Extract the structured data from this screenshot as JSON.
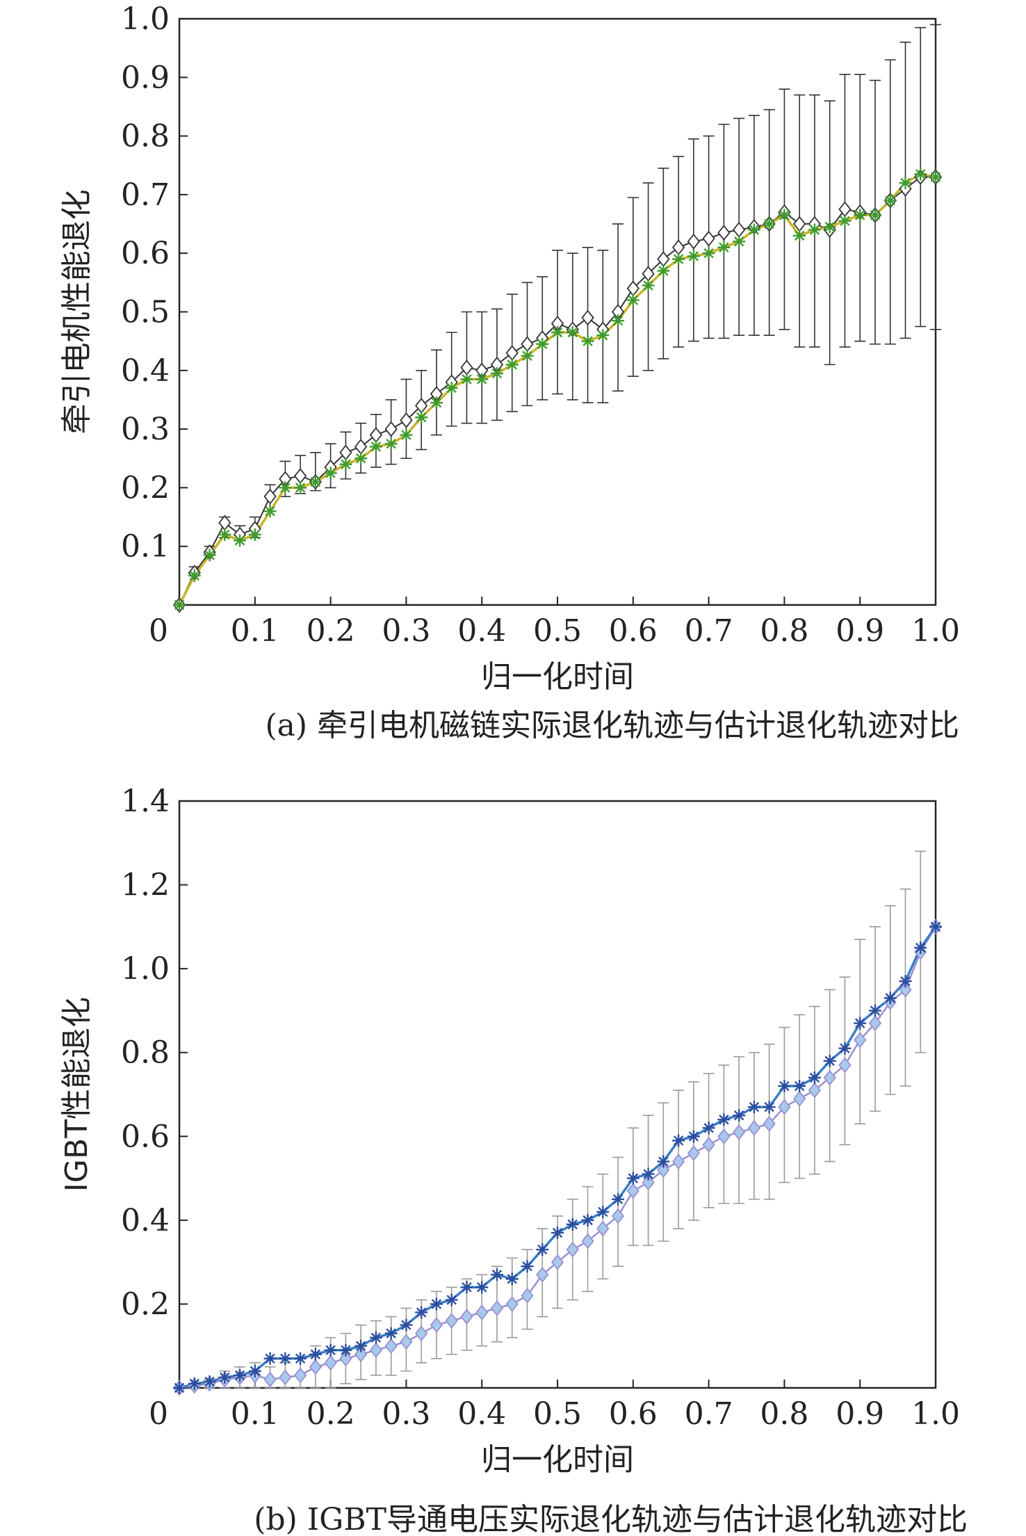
{
  "chart_data": [
    {
      "type": "line",
      "caption": "(a) 牵引电机磁链实际退化轨迹与估计退化轨迹对比",
      "xlabel": "归一化时间",
      "ylabel": "牵引电机性能退化",
      "xlim": [
        0,
        1.0
      ],
      "ylim": [
        0,
        1.0
      ],
      "x_origin_label": "0",
      "xticks": [
        0.1,
        0.2,
        0.3,
        0.4,
        0.5,
        0.6,
        0.7,
        0.8,
        0.9,
        1.0
      ],
      "xtick_labels": [
        "0.1",
        "0.2",
        "0.3",
        "0.4",
        "0.5",
        "0.6",
        "0.7",
        "0.8",
        "0.9",
        "1.0"
      ],
      "yticks": [
        0.1,
        0.2,
        0.3,
        0.4,
        0.5,
        0.6,
        0.7,
        0.8,
        0.9,
        1.0
      ],
      "ytick_labels": [
        "0.1",
        "0.2",
        "0.3",
        "0.4",
        "0.5",
        "0.6",
        "0.7",
        "0.8",
        "0.9",
        "1.0"
      ],
      "grid": false,
      "x": [
        0.0,
        0.02,
        0.04,
        0.06,
        0.08,
        0.1,
        0.12,
        0.14,
        0.16,
        0.18,
        0.2,
        0.22,
        0.24,
        0.26,
        0.28,
        0.3,
        0.32,
        0.34,
        0.36,
        0.38,
        0.4,
        0.42,
        0.44,
        0.46,
        0.48,
        0.5,
        0.52,
        0.54,
        0.56,
        0.58,
        0.6,
        0.62,
        0.64,
        0.66,
        0.68,
        0.7,
        0.72,
        0.74,
        0.76,
        0.78,
        0.8,
        0.82,
        0.84,
        0.86,
        0.88,
        0.9,
        0.92,
        0.94,
        0.96,
        0.98,
        1.0
      ],
      "series": [
        {
          "marker": "diamond",
          "color": "#333333",
          "fill": "#ffffff",
          "values": [
            0.0,
            0.055,
            0.09,
            0.14,
            0.12,
            0.13,
            0.185,
            0.215,
            0.22,
            0.21,
            0.235,
            0.26,
            0.27,
            0.29,
            0.3,
            0.315,
            0.34,
            0.36,
            0.38,
            0.405,
            0.4,
            0.41,
            0.43,
            0.445,
            0.455,
            0.48,
            0.47,
            0.49,
            0.47,
            0.5,
            0.54,
            0.565,
            0.59,
            0.61,
            0.62,
            0.625,
            0.635,
            0.64,
            0.645,
            0.65,
            0.67,
            0.65,
            0.65,
            0.64,
            0.675,
            0.67,
            0.665,
            0.69,
            0.71,
            0.73,
            0.73
          ],
          "error_low": [
            0.0,
            0.05,
            0.085,
            0.115,
            0.11,
            0.115,
            0.16,
            0.185,
            0.19,
            0.195,
            0.2,
            0.215,
            0.225,
            0.235,
            0.24,
            0.25,
            0.265,
            0.29,
            0.305,
            0.31,
            0.31,
            0.315,
            0.33,
            0.34,
            0.35,
            0.36,
            0.35,
            0.345,
            0.345,
            0.365,
            0.39,
            0.4,
            0.42,
            0.44,
            0.45,
            0.455,
            0.455,
            0.46,
            0.46,
            0.46,
            0.47,
            0.44,
            0.44,
            0.41,
            0.44,
            0.45,
            0.445,
            0.445,
            0.455,
            0.475,
            0.47
          ],
          "error_high": [
            0.0,
            0.065,
            0.1,
            0.15,
            0.135,
            0.15,
            0.205,
            0.245,
            0.255,
            0.26,
            0.275,
            0.295,
            0.31,
            0.325,
            0.35,
            0.385,
            0.4,
            0.435,
            0.465,
            0.5,
            0.5,
            0.505,
            0.53,
            0.55,
            0.56,
            0.605,
            0.6,
            0.61,
            0.605,
            0.65,
            0.695,
            0.72,
            0.745,
            0.765,
            0.795,
            0.8,
            0.82,
            0.83,
            0.835,
            0.845,
            0.88,
            0.87,
            0.87,
            0.86,
            0.905,
            0.905,
            0.895,
            0.93,
            0.96,
            0.985,
            0.99
          ]
        },
        {
          "marker": "asterisk",
          "color": "#c8b428",
          "marker_color": "#3f9a2e",
          "values": [
            0.0,
            0.05,
            0.085,
            0.12,
            0.11,
            0.12,
            0.16,
            0.2,
            0.2,
            0.21,
            0.225,
            0.24,
            0.25,
            0.27,
            0.275,
            0.29,
            0.32,
            0.345,
            0.37,
            0.385,
            0.385,
            0.395,
            0.41,
            0.425,
            0.445,
            0.465,
            0.465,
            0.45,
            0.46,
            0.485,
            0.52,
            0.545,
            0.57,
            0.59,
            0.595,
            0.6,
            0.61,
            0.62,
            0.64,
            0.65,
            0.665,
            0.63,
            0.64,
            0.645,
            0.655,
            0.665,
            0.665,
            0.69,
            0.72,
            0.735,
            0.73
          ]
        }
      ]
    },
    {
      "type": "line",
      "caption": "(b) IGBT导通电压实际退化轨迹与估计退化轨迹对比",
      "xlabel": "归一化时间",
      "ylabel": "IGBT性能退化",
      "xlim": [
        0,
        1.0
      ],
      "ylim": [
        0,
        1.4
      ],
      "x_origin_label": "0",
      "xticks": [
        0.1,
        0.2,
        0.3,
        0.4,
        0.5,
        0.6,
        0.7,
        0.8,
        0.9,
        1.0
      ],
      "xtick_labels": [
        "0.1",
        "0.2",
        "0.3",
        "0.4",
        "0.5",
        "0.6",
        "0.7",
        "0.8",
        "0.9",
        "1.0"
      ],
      "yticks": [
        0.2,
        0.4,
        0.6,
        0.8,
        1.0,
        1.2,
        1.4
      ],
      "ytick_labels": [
        "0.2",
        "0.4",
        "0.6",
        "0.8",
        "1.0",
        "1.2",
        "1.4"
      ],
      "grid": false,
      "x": [
        0.0,
        0.02,
        0.04,
        0.06,
        0.08,
        0.1,
        0.12,
        0.14,
        0.16,
        0.18,
        0.2,
        0.22,
        0.24,
        0.26,
        0.28,
        0.3,
        0.32,
        0.34,
        0.36,
        0.38,
        0.4,
        0.42,
        0.44,
        0.46,
        0.48,
        0.5,
        0.52,
        0.54,
        0.56,
        0.58,
        0.6,
        0.62,
        0.64,
        0.66,
        0.68,
        0.7,
        0.72,
        0.74,
        0.76,
        0.78,
        0.8,
        0.82,
        0.84,
        0.86,
        0.88,
        0.9,
        0.92,
        0.94,
        0.96,
        0.98,
        1.0
      ],
      "series": [
        {
          "marker": "diamond",
          "color": "#9b8fd2",
          "fill": "#a7c9ec",
          "values": [
            0.0,
            0.005,
            0.01,
            0.02,
            0.025,
            0.03,
            0.02,
            0.025,
            0.03,
            0.05,
            0.06,
            0.07,
            0.08,
            0.09,
            0.1,
            0.11,
            0.13,
            0.15,
            0.16,
            0.17,
            0.18,
            0.19,
            0.2,
            0.22,
            0.27,
            0.3,
            0.33,
            0.35,
            0.38,
            0.41,
            0.47,
            0.49,
            0.52,
            0.54,
            0.56,
            0.58,
            0.6,
            0.61,
            0.62,
            0.63,
            0.67,
            0.69,
            0.71,
            0.74,
            0.77,
            0.83,
            0.87,
            0.92,
            0.95,
            1.04,
            1.1
          ],
          "error_low": [
            0.0,
            0.0,
            0.0,
            0.0,
            0.0,
            0.0,
            0.0,
            0.0,
            0.0,
            0.0,
            0.0,
            0.01,
            0.02,
            0.03,
            0.03,
            0.04,
            0.06,
            0.07,
            0.08,
            0.09,
            0.1,
            0.11,
            0.12,
            0.14,
            0.17,
            0.19,
            0.21,
            0.23,
            0.26,
            0.29,
            0.34,
            0.34,
            0.35,
            0.38,
            0.4,
            0.43,
            0.44,
            0.44,
            0.45,
            0.45,
            0.49,
            0.5,
            0.51,
            0.54,
            0.58,
            0.63,
            0.66,
            0.7,
            0.72,
            0.8,
            1.1
          ],
          "error_high": [
            0.0,
            0.01,
            0.02,
            0.04,
            0.05,
            0.06,
            0.05,
            0.06,
            0.07,
            0.1,
            0.12,
            0.13,
            0.15,
            0.16,
            0.17,
            0.19,
            0.21,
            0.23,
            0.24,
            0.26,
            0.27,
            0.29,
            0.31,
            0.33,
            0.38,
            0.41,
            0.45,
            0.48,
            0.51,
            0.55,
            0.62,
            0.65,
            0.68,
            0.71,
            0.73,
            0.75,
            0.77,
            0.79,
            0.8,
            0.82,
            0.86,
            0.89,
            0.91,
            0.95,
            0.98,
            1.07,
            1.1,
            1.15,
            1.19,
            1.28,
            1.1
          ]
        },
        {
          "marker": "asterisk",
          "color": "#3a7ec4",
          "marker_color": "#2a4e9e",
          "values": [
            0.0,
            0.01,
            0.015,
            0.025,
            0.03,
            0.04,
            0.07,
            0.07,
            0.07,
            0.08,
            0.09,
            0.09,
            0.1,
            0.12,
            0.13,
            0.15,
            0.18,
            0.2,
            0.21,
            0.24,
            0.24,
            0.27,
            0.26,
            0.29,
            0.33,
            0.37,
            0.39,
            0.4,
            0.42,
            0.45,
            0.5,
            0.51,
            0.54,
            0.59,
            0.6,
            0.62,
            0.64,
            0.65,
            0.67,
            0.67,
            0.72,
            0.72,
            0.74,
            0.78,
            0.81,
            0.87,
            0.9,
            0.93,
            0.97,
            1.05,
            1.1
          ]
        }
      ]
    }
  ]
}
